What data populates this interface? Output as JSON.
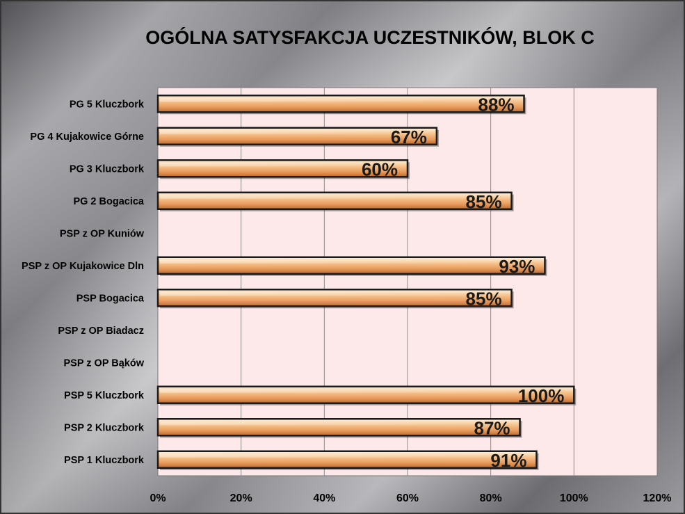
{
  "chart_data": {
    "type": "bar",
    "orientation": "horizontal",
    "title": "OGÓLNA SATYSFAKCJA UCZESTNIKÓW, BLOK C",
    "xlabel": "",
    "ylabel": "",
    "xlim": [
      0,
      120
    ],
    "x_ticks": [
      "0%",
      "20%",
      "40%",
      "60%",
      "80%",
      "100%",
      "120%"
    ],
    "grid": true,
    "legend": "none",
    "categories": [
      "PG 5 Kluczbork",
      "PG 4 Kujakowice Górne",
      "PG 3 Kluczbork",
      "PG 2 Bogacica",
      "PSP z OP Kuniów",
      "PSP z OP Kujakowice Dln",
      "PSP Bogacica",
      "PSP z OP Biadacz",
      "PSP z OP Bąków",
      "PSP 5 Kluczbork",
      "PSP 2 Kluczbork",
      "PSP 1 Kluczbork"
    ],
    "values": [
      88,
      67,
      60,
      85,
      null,
      93,
      85,
      null,
      null,
      100,
      87,
      91
    ],
    "data_labels": [
      "88%",
      "67%",
      "60%",
      "85%",
      "",
      "93%",
      "85%",
      "",
      "",
      "100%",
      "87%",
      "91%"
    ],
    "colors": {
      "bar_light": "#fde6c8",
      "bar_mid": "#f2b47a",
      "bar_dark": "#c9783f",
      "bar_border": "#1a1a1a",
      "plot_bg": "#fde9ea",
      "grid": "#8a8a8a"
    }
  }
}
